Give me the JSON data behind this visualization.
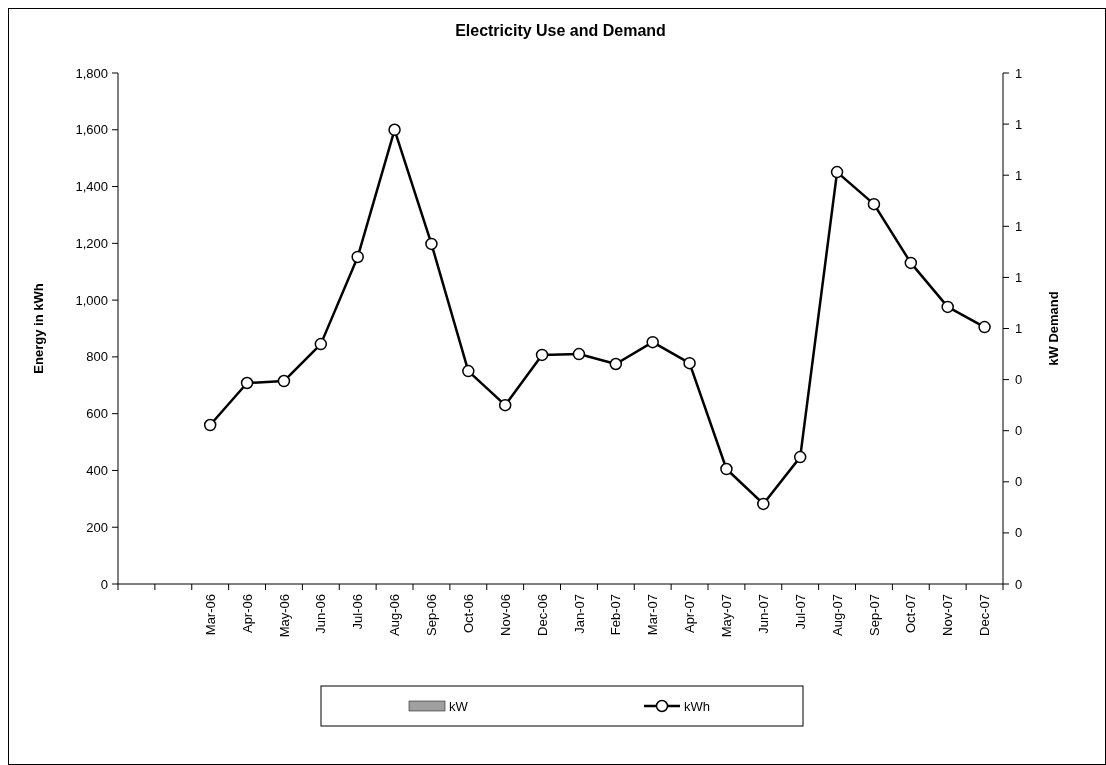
{
  "chart_data": {
    "type": "line",
    "title": "Electricity Use and Demand",
    "ylabel": "Energy in kWh",
    "y2label": "kW Demand",
    "categories": [
      null,
      null,
      "Mar-06",
      "Apr-06",
      "May-06",
      "Jun-06",
      "Jul-06",
      "Aug-06",
      "Sep-06",
      "Oct-06",
      "Nov-06",
      "Dec-06",
      "Jan-07",
      "Feb-07",
      "Mar-07",
      "Apr-07",
      "May-07",
      "Jun-07",
      "Jul-07",
      "Aug-07",
      "Sep-07",
      "Oct-07",
      "Nov-07",
      "Dec-07"
    ],
    "series": [
      {
        "name": "kW",
        "type": "bar",
        "color": "#a0a0a0",
        "values": [
          null,
          null,
          null,
          null,
          null,
          null,
          null,
          null,
          null,
          null,
          null,
          null,
          null,
          null,
          null,
          null,
          null,
          null,
          null,
          null,
          null,
          null,
          null,
          null
        ]
      },
      {
        "name": "kWh",
        "color": "#000000",
        "values": [
          null,
          null,
          560,
          708,
          715,
          845,
          1152,
          1600,
          1198,
          750,
          630,
          807,
          810,
          775,
          852,
          778,
          405,
          282,
          447,
          1451,
          1338,
          1131,
          976,
          905
        ]
      }
    ],
    "ylim": [
      0,
      1800
    ],
    "yticks": [
      {
        "value": 0,
        "label": "0"
      },
      {
        "value": 200,
        "label": "200"
      },
      {
        "value": 400,
        "label": "400"
      },
      {
        "value": 600,
        "label": "600"
      },
      {
        "value": 800,
        "label": "800"
      },
      {
        "value": 1000,
        "label": "1,000"
      },
      {
        "value": 1200,
        "label": "1,200"
      },
      {
        "value": 1400,
        "label": "1,400"
      },
      {
        "value": 1600,
        "label": "1,600"
      },
      {
        "value": 1800,
        "label": "1,800"
      }
    ],
    "y2lim": [
      0,
      1
    ],
    "y2ticks": [
      {
        "value": 0,
        "label": "0"
      },
      {
        "value": 0.1,
        "label": "0"
      },
      {
        "value": 0.2,
        "label": "0"
      },
      {
        "value": 0.3,
        "label": "0"
      },
      {
        "value": 0.4,
        "label": "0"
      },
      {
        "value": 0.5,
        "label": "1"
      },
      {
        "value": 0.6,
        "label": "1"
      },
      {
        "value": 0.7,
        "label": "1"
      },
      {
        "value": 0.8,
        "label": "1"
      },
      {
        "value": 0.9,
        "label": "1"
      },
      {
        "value": 1,
        "label": "1"
      }
    ],
    "marker": "circle",
    "line_style": "solid",
    "legend": "bottom",
    "grid": false
  }
}
